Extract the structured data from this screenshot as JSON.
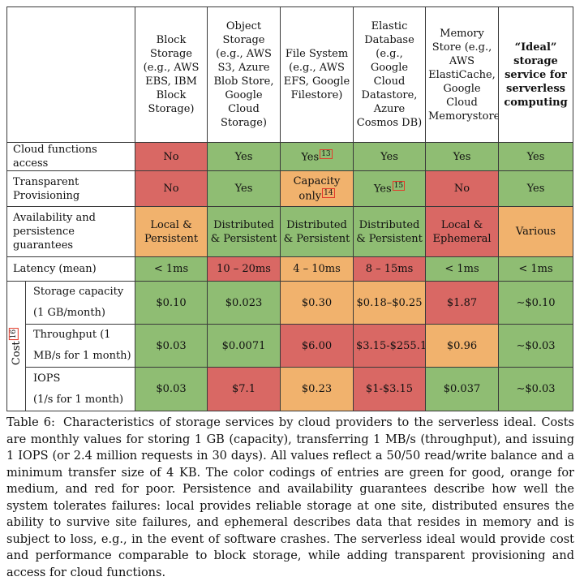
{
  "header": {
    "corner": "",
    "columns": [
      "Block Storage (e.g., AWS EBS, IBM Block Storage)",
      "Object Storage (e.g., AWS S3, Azure Blob Store, Google Cloud Storage)",
      "File System (e.g., AWS EFS, Google Filestore)",
      "Elastic Database (e.g., Google Cloud Datastore, Azure Cosmos DB)",
      "Memory Store (e.g., AWS ElastiCache, Google Cloud Memorystore)",
      "“Ideal” storage service for serverless computing"
    ]
  },
  "rows": {
    "cloud_functions": {
      "label": "Cloud functions access",
      "cells": [
        {
          "text": "No"
        },
        {
          "text": "Yes"
        },
        {
          "text": "Yes",
          "fn": "13"
        },
        {
          "text": "Yes"
        },
        {
          "text": "Yes"
        },
        {
          "text": "Yes"
        }
      ]
    },
    "transparent": {
      "label": "Transparent Provisioning",
      "cells": [
        {
          "text": "No"
        },
        {
          "text": "Yes"
        },
        {
          "text": "Capacity only",
          "fn": "14"
        },
        {
          "text": "Yes",
          "fn": "15"
        },
        {
          "text": "No"
        },
        {
          "text": "Yes"
        }
      ]
    },
    "availability": {
      "label": "Availability and persistence guarantees",
      "cells": [
        {
          "text": "Local & Persistent"
        },
        {
          "text": "Distributed & Persistent"
        },
        {
          "text": "Distributed & Persistent"
        },
        {
          "text": "Distributed & Persistent"
        },
        {
          "text": "Local & Ephemeral"
        },
        {
          "text": "Various"
        }
      ]
    },
    "latency": {
      "label": "Latency (mean)",
      "cells": [
        {
          "text": "< 1ms"
        },
        {
          "text": "10 – 20ms"
        },
        {
          "text": "4 – 10ms"
        },
        {
          "text": "8 – 15ms"
        },
        {
          "text": "< 1ms"
        },
        {
          "text": "< 1ms"
        }
      ]
    },
    "cost_label": "Cost",
    "cost_fn": "16",
    "storage": {
      "label_line1": "Storage capacity",
      "label_line2": "(1 GB/month)",
      "cells": [
        {
          "text": "$0.10"
        },
        {
          "text": "$0.023"
        },
        {
          "text": "$0.30"
        },
        {
          "text": "$0.18–$0.25"
        },
        {
          "text": "$1.87"
        },
        {
          "text": "∼$0.10"
        }
      ]
    },
    "throughput": {
      "label_line1": "Throughput (1",
      "label_line2": "MB/s for 1 month)",
      "cells": [
        {
          "text": "$0.03"
        },
        {
          "text": "$0.0071"
        },
        {
          "text": "$6.00"
        },
        {
          "text": "$3.15-$255.1"
        },
        {
          "text": "$0.96"
        },
        {
          "text": "∼$0.03"
        }
      ]
    },
    "iops": {
      "label_line1": "IOPS",
      "label_line2": "(1/s for 1 month)",
      "cells": [
        {
          "text": "$0.03"
        },
        {
          "text": "$7.1"
        },
        {
          "text": "$0.23"
        },
        {
          "text": "$1-$3.15"
        },
        {
          "text": "$0.037"
        },
        {
          "text": "∼$0.03"
        }
      ]
    }
  },
  "colors": {
    "good": "#8fbd73",
    "medium": "#f1b26d",
    "poor": "#d96864"
  },
  "caption": {
    "label": "Table 6:",
    "text": "Characteristics of storage services by cloud providers to the serverless ideal. Costs are monthly values for storing 1 GB (capacity), transferring 1 MB/s (throughput), and issuing 1 IOPS (or 2.4 million requests in 30 days). All values reflect a 50/50 read/write balance and a minimum transfer size of 4 KB. The color codings of entries are green for good, orange for medium, and red for poor. Persistence and availability guarantees describe how well the system tolerates failures: local provides reliable storage at one site, distributed ensures the ability to survive site failures, and ephemeral describes data that resides in memory and is subject to loss, e.g., in the event of software crashes. The serverless ideal would provide cost and performance comparable to block storage, while adding transparent provisioning and access for cloud functions."
  }
}
